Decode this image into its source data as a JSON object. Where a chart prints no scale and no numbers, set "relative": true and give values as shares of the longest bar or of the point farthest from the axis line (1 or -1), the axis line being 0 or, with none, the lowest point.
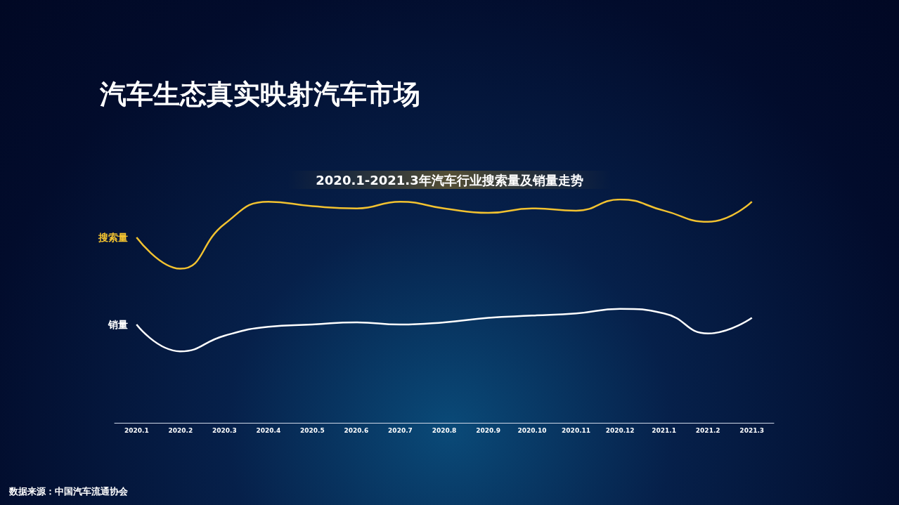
{
  "chart_data": {
    "type": "line",
    "title": "汽车生态真实映射汽车市场",
    "subtitle": "2020.1-2021.3年汽车行业搜索量及销量走势",
    "categories": [
      "2020.1",
      "2020.2",
      "2020.3",
      "2020.4",
      "2020.5",
      "2020.6",
      "2020.7",
      "2020.8",
      "2020.9",
      "2020.10",
      "2020.11",
      "2020.12",
      "2021.1",
      "2021.2",
      "2021.3"
    ],
    "series": [
      {
        "name": "搜索量",
        "color": "#f2c230",
        "values": [
          0.83,
          0.69,
          0.89,
          0.99,
          0.97,
          0.96,
          0.99,
          0.96,
          0.94,
          0.96,
          0.95,
          1,
          0.95,
          0.9,
          0.99
        ]
      },
      {
        "name": "销量",
        "color": "#ffffff",
        "values": [
          0.44,
          0.32,
          0.39,
          0.43,
          0.44,
          0.45,
          0.44,
          0.45,
          0.47,
          0.48,
          0.49,
          0.51,
          0.49,
          0.4,
          0.47
        ]
      }
    ],
    "relative": true,
    "marker": "none",
    "annotations": [
      "数据来源：中国汽车流通协会"
    ]
  }
}
